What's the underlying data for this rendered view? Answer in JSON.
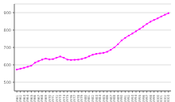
{
  "chart_data": {
    "type": "line",
    "x": [
      1961,
      1962,
      1963,
      1964,
      1965,
      1966,
      1967,
      1968,
      1969,
      1970,
      1971,
      1972,
      1973,
      1974,
      1975,
      1976,
      1977,
      1978,
      1979,
      1980,
      1981,
      1982,
      1983,
      1984,
      1985,
      1986,
      1987,
      1988,
      1989,
      1990,
      1991,
      1992,
      1993,
      1994,
      1995,
      1996,
      1997,
      1998,
      1999,
      2000,
      2001,
      2002,
      2003
    ],
    "values": [
      573,
      578,
      583,
      589,
      595,
      612,
      621,
      630,
      636,
      631,
      633,
      641,
      648,
      641,
      630,
      628,
      629,
      630,
      634,
      640,
      649,
      658,
      663,
      666,
      669,
      675,
      686,
      700,
      718,
      740,
      755,
      768,
      780,
      793,
      806,
      820,
      835,
      848,
      858,
      867,
      878,
      888,
      897
    ],
    "color": "#FF00FF",
    "marker": "square",
    "xlim": [
      1960.3,
      2003.7
    ],
    "xticks": [
      1961,
      1962,
      1963,
      1964,
      1965,
      1966,
      1967,
      1968,
      1969,
      1970,
      1971,
      1972,
      1973,
      1974,
      1975,
      1976,
      1977,
      1978,
      1979,
      1980,
      1981,
      1982,
      1983,
      1984,
      1985,
      1986,
      1987,
      1988,
      1989,
      1990,
      1991,
      1992,
      1993,
      1994,
      1995,
      1996,
      1997,
      1998,
      1999,
      2000,
      2001,
      2002,
      2003
    ],
    "ylim": [
      450,
      950
    ],
    "yticks": [
      500,
      600,
      700,
      800,
      900
    ],
    "grid": "y"
  }
}
